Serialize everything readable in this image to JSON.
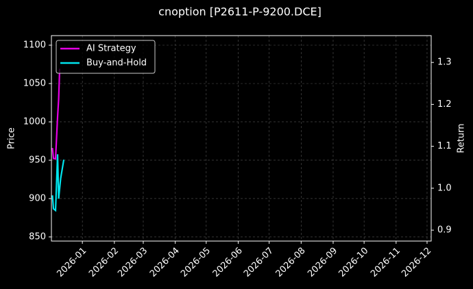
{
  "chart_data": {
    "type": "line",
    "title": "cnoption [P2611-P-9200.DCE]",
    "y_label": "Price",
    "y2_label": "Return",
    "xlim": [
      "2025-12-02",
      "2026-12-05"
    ],
    "xticks": [
      "2026-01",
      "2026-02",
      "2026-03",
      "2026-04",
      "2026-05",
      "2026-06",
      "2026-07",
      "2026-08",
      "2026-09",
      "2026-10",
      "2026-11",
      "2026-12"
    ],
    "ylim": [
      844.6,
      1112.5
    ],
    "yticks": [
      850,
      900,
      950,
      1000,
      1050,
      1100
    ],
    "y2lim": [
      0.874,
      1.364
    ],
    "y2ticks": [
      0.9,
      {
        "value": 1,
        "label": "1.0"
      },
      1.1,
      1.2,
      1.3
    ],
    "grid": true,
    "legend": "upper left",
    "series": [
      {
        "name": "AI Strategy",
        "color": "#e600e6",
        "axis": "y2",
        "x": [
          "2025-12-03",
          "2025-12-04",
          "2025-12-06",
          "2025-12-08",
          "2025-12-09",
          "2025-12-10"
        ],
        "values": [
          1.096,
          1.071,
          1.07,
          1.171,
          1.212,
          1.285
        ]
      },
      {
        "name": "Buy-and-Hold",
        "color": "#00e5ee",
        "axis": "y2",
        "x": [
          "2025-12-03",
          "2025-12-04",
          "2025-12-06",
          "2025-12-08",
          "2025-12-09",
          "2025-12-11",
          "2025-12-14"
        ],
        "values": [
          0.983,
          0.951,
          0.947,
          1.081,
          0.975,
          1.024,
          1.068
        ]
      }
    ]
  }
}
